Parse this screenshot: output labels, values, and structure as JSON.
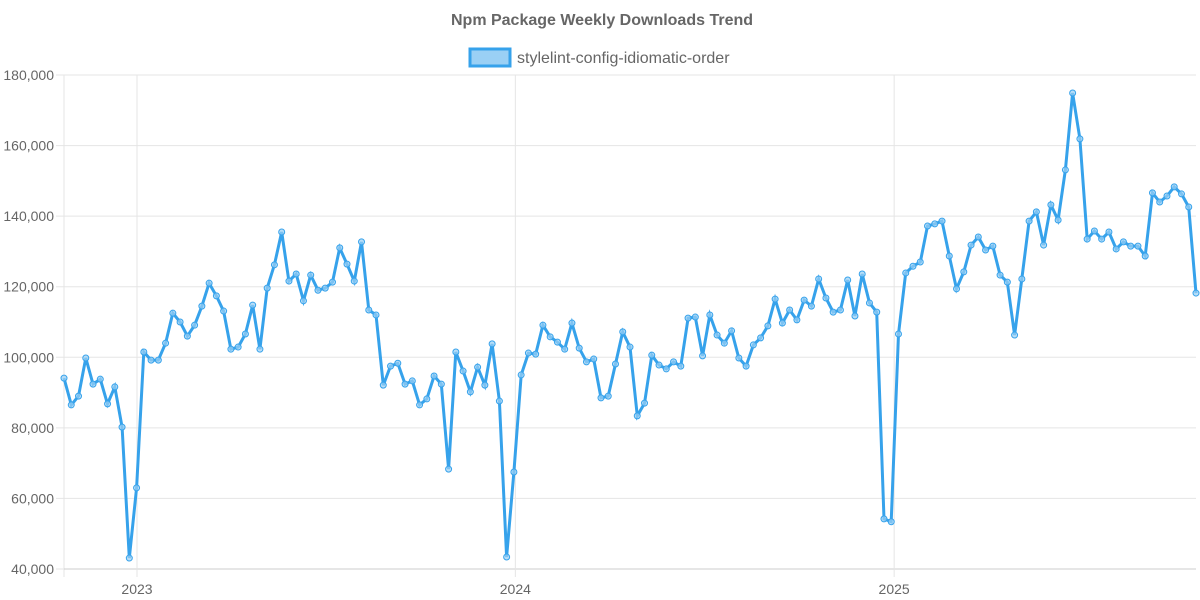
{
  "chart_data": {
    "type": "line",
    "title": "Npm Package Weekly Downloads Trend",
    "xlabel": "",
    "ylabel": "",
    "ylim": [
      40000,
      180000
    ],
    "yticks": [
      40000,
      60000,
      80000,
      100000,
      120000,
      140000,
      160000,
      180000
    ],
    "ytick_labels": [
      "40,000",
      "60,000",
      "80,000",
      "100,000",
      "120,000",
      "140,000",
      "160,000",
      "180,000"
    ],
    "x_unit": "week index",
    "xticks": [
      {
        "label": "2023",
        "at": 10.06
      },
      {
        "label": "2024",
        "at": 62.2
      },
      {
        "label": "2025",
        "at": 114.4
      }
    ],
    "grid": true,
    "legend_position": "top-center",
    "colors": {
      "line": "#36a2eb",
      "fill": "#9ad0f5",
      "grid": "#e5e5e5",
      "text": "#666666"
    },
    "series": [
      {
        "name": "stylelint-config-idiomatic-order",
        "values": [
          94100,
          86500,
          89000,
          99800,
          92400,
          93800,
          86800,
          91600,
          80200,
          43100,
          63000,
          101500,
          99200,
          99200,
          104000,
          112500,
          110000,
          106000,
          109100,
          114500,
          121000,
          117400,
          113100,
          102300,
          102900,
          106600,
          114800,
          102300,
          119600,
          126200,
          135500,
          121600,
          123600,
          116000,
          123300,
          119000,
          119600,
          121300,
          131000,
          126400,
          121600,
          132700,
          113400,
          112000,
          92100,
          97500,
          98300,
          92400,
          93300,
          86500,
          88200,
          94700,
          92400,
          68300,
          101500,
          96100,
          90200,
          97200,
          92100,
          103800,
          87600,
          43400,
          67500,
          95000,
          101200,
          100900,
          109100,
          105800,
          104300,
          102300,
          109700,
          102600,
          98700,
          99500,
          88500,
          89000,
          98100,
          107200,
          102900,
          83400,
          87000,
          100600,
          97800,
          96700,
          98700,
          97500,
          111100,
          111400,
          100400,
          112000,
          106300,
          104000,
          107500,
          99800,
          97500,
          103500,
          105500,
          108900,
          116500,
          109700,
          113400,
          110600,
          116200,
          114500,
          122200,
          116800,
          112800,
          113400,
          121900,
          111700,
          123600,
          115400,
          112800,
          54200,
          53400,
          106600,
          123900,
          125800,
          127000,
          137200,
          137800,
          138600,
          128700,
          119400,
          124200,
          131800,
          134100,
          130400,
          131500,
          123300,
          121300,
          106300,
          122200,
          138600,
          141200,
          131800,
          143200,
          138900,
          153100,
          174900,
          161900,
          133500,
          135800,
          133500,
          135500,
          130700,
          132700,
          131500,
          131500,
          128700,
          146600,
          144000,
          145700,
          148300,
          146300,
          142600,
          118200
        ]
      }
    ]
  }
}
